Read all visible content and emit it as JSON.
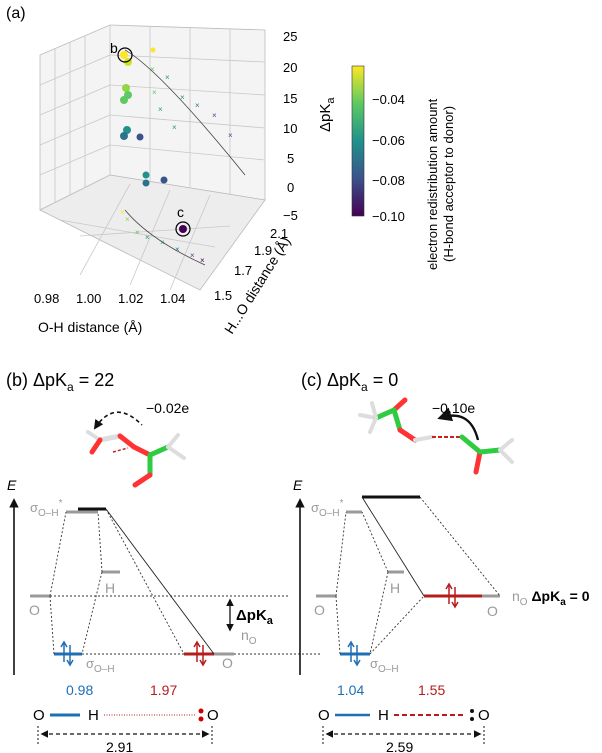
{
  "panel_a": {
    "label": "(a)",
    "z_ticks": [
      "25",
      "20",
      "15",
      "10",
      "5",
      "0",
      "−5"
    ],
    "z_axis_label": "ΔpK",
    "z_axis_sub": "a",
    "y_ticks": [
      "2.1",
      "1.9",
      "1.7",
      "1.5"
    ],
    "y_axis_label": "H...O distance (Å)",
    "x_ticks": [
      "0.98",
      "1.00",
      "1.02",
      "1.04"
    ],
    "x_axis_label": "O-H distance (Å)",
    "marker_b": "b",
    "marker_c": "c",
    "colorbar_ticks": [
      "−0.04",
      "−0.06",
      "−0.08",
      "−0.10"
    ],
    "colorbar_label_1": "electron redistribution amount",
    "colorbar_label_2": "(H-bond acceptor to donor)",
    "colors": {
      "low": "#440154",
      "mid1": "#3b528b",
      "mid2": "#21918c",
      "mid3": "#5ec962",
      "high": "#fde725"
    }
  },
  "panel_b": {
    "label_prefix": "(b) ΔpK",
    "label_sub": "a",
    "label_suffix": " = 22",
    "charge": "−0.02e",
    "energy_axis": "E",
    "sigma_star": "σ",
    "sigma_star_sub": "O–H",
    "sigma_star_sup": "*",
    "left_O": "O",
    "mid_H": "H",
    "sigma": "σ",
    "sigma_sub": "O–H",
    "right_O": "O",
    "nO": "n",
    "nO_sub": "O",
    "dpka": "ΔpK",
    "dpka_sub": "a",
    "dist_OH": "0.98",
    "dist_HO": "1.97",
    "atom_O1": "O",
    "atom_H": "H",
    "atom_O2": "O",
    "total": "2.91"
  },
  "panel_c": {
    "label_prefix": "(c) ΔpK",
    "label_sub": "a",
    "label_suffix": " = 0",
    "charge": "−0.10e",
    "energy_axis": "E",
    "sigma_star": "σ",
    "sigma_star_sub": "O–H",
    "sigma_star_sup": "*",
    "left_O": "O",
    "mid_H": "H",
    "sigma": "σ",
    "sigma_sub": "O–H",
    "right_O": "O",
    "nO": "n",
    "nO_sub": "O",
    "dpka_text": " ΔpK",
    "dpka_sub": "a",
    "dpka_suffix": " = 0",
    "dist_OH": "1.04",
    "dist_HO": "1.55",
    "atom_O1": "O",
    "atom_H": "H",
    "atom_O2": "O",
    "total": "2.59"
  },
  "colors": {
    "blue": "#1f6fb4",
    "red": "#b71c1c",
    "gray": "#9a9a9a"
  }
}
